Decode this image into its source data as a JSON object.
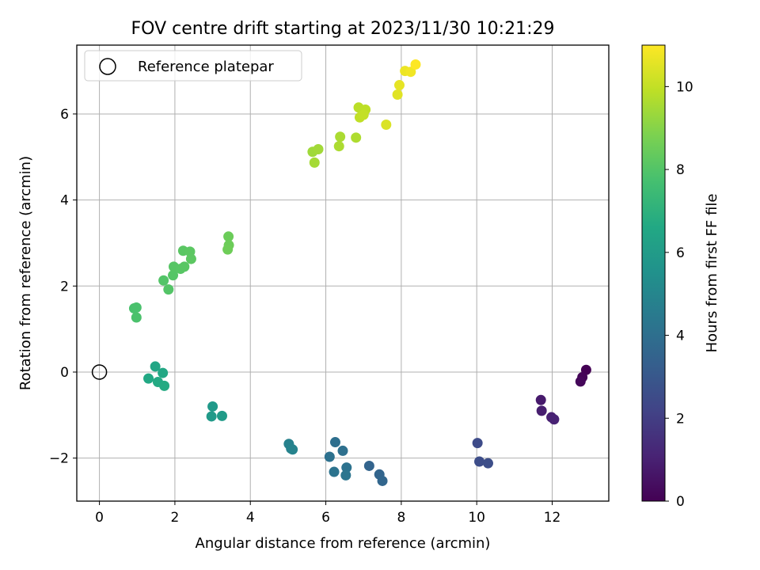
{
  "chart_data": {
    "type": "scatter",
    "title": "FOV centre drift starting at 2023/11/30 10:21:29",
    "xlabel": "Angular distance from reference (arcmin)",
    "ylabel": "Rotation from reference (arcmin)",
    "xlim": [
      -0.6,
      13.5
    ],
    "ylim": [
      -3.0,
      7.6
    ],
    "xticks": [
      0,
      2,
      4,
      6,
      8,
      10,
      12
    ],
    "yticks": [
      -2,
      0,
      2,
      4,
      6
    ],
    "grid": true,
    "legend": {
      "position": "top-left",
      "entries": [
        "Reference platepar"
      ]
    },
    "reference_point": {
      "x": 0,
      "y": 0
    },
    "colorbar": {
      "label": "Hours from first FF file",
      "range": [
        0,
        11
      ],
      "ticks": [
        0,
        2,
        4,
        6,
        8,
        10
      ],
      "colormap": "viridis"
    },
    "points": [
      {
        "x": 12.9,
        "y": 0.05,
        "h": 0.0
      },
      {
        "x": 12.8,
        "y": -0.12,
        "h": 0.1
      },
      {
        "x": 12.75,
        "y": -0.22,
        "h": 0.2
      },
      {
        "x": 11.7,
        "y": -0.65,
        "h": 0.8
      },
      {
        "x": 11.72,
        "y": -0.9,
        "h": 0.9
      },
      {
        "x": 11.98,
        "y": -1.05,
        "h": 1.0
      },
      {
        "x": 12.05,
        "y": -1.1,
        "h": 1.05
      },
      {
        "x": 10.02,
        "y": -1.65,
        "h": 2.5
      },
      {
        "x": 10.07,
        "y": -2.08,
        "h": 2.55
      },
      {
        "x": 10.3,
        "y": -2.12,
        "h": 2.6
      },
      {
        "x": 7.15,
        "y": -2.18,
        "h": 3.5
      },
      {
        "x": 7.42,
        "y": -2.38,
        "h": 3.55
      },
      {
        "x": 7.5,
        "y": -2.53,
        "h": 3.6
      },
      {
        "x": 6.25,
        "y": -1.63,
        "h": 4.0
      },
      {
        "x": 6.45,
        "y": -1.83,
        "h": 4.05
      },
      {
        "x": 6.1,
        "y": -1.97,
        "h": 4.1
      },
      {
        "x": 6.55,
        "y": -2.22,
        "h": 4.15
      },
      {
        "x": 6.22,
        "y": -2.32,
        "h": 4.2
      },
      {
        "x": 6.53,
        "y": -2.4,
        "h": 4.25
      },
      {
        "x": 5.02,
        "y": -1.67,
        "h": 4.8
      },
      {
        "x": 5.08,
        "y": -1.78,
        "h": 4.85
      },
      {
        "x": 5.12,
        "y": -1.8,
        "h": 4.9
      },
      {
        "x": 3.0,
        "y": -0.8,
        "h": 5.9
      },
      {
        "x": 2.97,
        "y": -1.03,
        "h": 5.95
      },
      {
        "x": 3.25,
        "y": -1.02,
        "h": 6.0
      },
      {
        "x": 1.48,
        "y": 0.13,
        "h": 6.5
      },
      {
        "x": 1.68,
        "y": -0.02,
        "h": 6.55
      },
      {
        "x": 1.3,
        "y": -0.15,
        "h": 6.6
      },
      {
        "x": 1.55,
        "y": -0.23,
        "h": 6.65
      },
      {
        "x": 1.72,
        "y": -0.32,
        "h": 6.7
      },
      {
        "x": 0.92,
        "y": 1.48,
        "h": 7.8
      },
      {
        "x": 0.98,
        "y": 1.5,
        "h": 7.82
      },
      {
        "x": 0.98,
        "y": 1.27,
        "h": 7.85
      },
      {
        "x": 1.7,
        "y": 2.13,
        "h": 8.0
      },
      {
        "x": 1.83,
        "y": 1.92,
        "h": 8.02
      },
      {
        "x": 1.95,
        "y": 2.25,
        "h": 8.05
      },
      {
        "x": 1.97,
        "y": 2.45,
        "h": 8.08
      },
      {
        "x": 2.15,
        "y": 2.4,
        "h": 8.1
      },
      {
        "x": 2.25,
        "y": 2.45,
        "h": 8.12
      },
      {
        "x": 2.22,
        "y": 2.82,
        "h": 8.15
      },
      {
        "x": 2.4,
        "y": 2.8,
        "h": 8.18
      },
      {
        "x": 2.43,
        "y": 2.63,
        "h": 8.2
      },
      {
        "x": 3.42,
        "y": 3.15,
        "h": 8.5
      },
      {
        "x": 3.43,
        "y": 2.95,
        "h": 8.52
      },
      {
        "x": 3.4,
        "y": 2.85,
        "h": 8.55
      },
      {
        "x": 5.65,
        "y": 5.12,
        "h": 9.4
      },
      {
        "x": 5.8,
        "y": 5.18,
        "h": 9.45
      },
      {
        "x": 5.7,
        "y": 4.87,
        "h": 9.5
      },
      {
        "x": 6.38,
        "y": 5.47,
        "h": 9.6
      },
      {
        "x": 6.35,
        "y": 5.25,
        "h": 9.62
      },
      {
        "x": 6.8,
        "y": 5.45,
        "h": 9.65
      },
      {
        "x": 6.87,
        "y": 6.15,
        "h": 9.85
      },
      {
        "x": 7.05,
        "y": 6.1,
        "h": 9.9
      },
      {
        "x": 6.9,
        "y": 5.92,
        "h": 9.95
      },
      {
        "x": 7.0,
        "y": 5.98,
        "h": 10.0
      },
      {
        "x": 7.6,
        "y": 5.75,
        "h": 10.4
      },
      {
        "x": 7.9,
        "y": 6.45,
        "h": 10.5
      },
      {
        "x": 7.95,
        "y": 6.67,
        "h": 10.6
      },
      {
        "x": 8.1,
        "y": 7.0,
        "h": 10.7
      },
      {
        "x": 8.25,
        "y": 6.98,
        "h": 10.8
      },
      {
        "x": 8.38,
        "y": 7.15,
        "h": 11.0
      }
    ]
  }
}
